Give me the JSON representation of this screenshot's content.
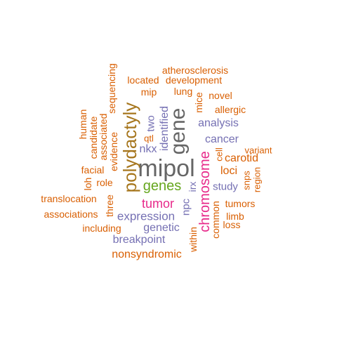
{
  "colors": {
    "orange": "#d95f02",
    "purple": "#7570b3",
    "gray": "#666666",
    "brown": "#a6761d",
    "magenta": "#e7298a",
    "green": "#66a61e"
  },
  "words": [
    {
      "text": "mipol",
      "color": "gray",
      "vertical": false
    },
    {
      "text": "gene",
      "color": "gray",
      "vertical": true
    },
    {
      "text": "polydactyly",
      "color": "brown",
      "vertical": true
    },
    {
      "text": "chromosome",
      "color": "magenta",
      "vertical": true
    },
    {
      "text": "genes",
      "color": "green",
      "vertical": false
    },
    {
      "text": "tumor",
      "color": "magenta",
      "vertical": false
    },
    {
      "text": "expression",
      "color": "purple",
      "vertical": false
    },
    {
      "text": "genetic",
      "color": "purple",
      "vertical": false
    },
    {
      "text": "breakpoint",
      "color": "purple",
      "vertical": false
    },
    {
      "text": "analysis",
      "color": "purple",
      "vertical": false
    },
    {
      "text": "cancer",
      "color": "purple",
      "vertical": false
    },
    {
      "text": "study",
      "color": "purple",
      "vertical": false
    },
    {
      "text": "identified",
      "color": "purple",
      "vertical": true
    },
    {
      "text": "nkx",
      "color": "purple",
      "vertical": false
    },
    {
      "text": "two",
      "color": "purple",
      "vertical": true
    },
    {
      "text": "npc",
      "color": "purple",
      "vertical": true
    },
    {
      "text": "irx",
      "color": "purple",
      "vertical": true
    },
    {
      "text": "nonsyndromic",
      "color": "orange",
      "vertical": false
    },
    {
      "text": "atherosclerosis",
      "color": "orange",
      "vertical": false
    },
    {
      "text": "located",
      "color": "orange",
      "vertical": false
    },
    {
      "text": "development",
      "color": "orange",
      "vertical": false
    },
    {
      "text": "mip",
      "color": "orange",
      "vertical": false
    },
    {
      "text": "lung",
      "color": "orange",
      "vertical": false
    },
    {
      "text": "novel",
      "color": "orange",
      "vertical": false
    },
    {
      "text": "mice",
      "color": "orange",
      "vertical": true
    },
    {
      "text": "allergic",
      "color": "orange",
      "vertical": false
    },
    {
      "text": "sequencing",
      "color": "orange",
      "vertical": true
    },
    {
      "text": "evidence",
      "color": "orange",
      "vertical": true
    },
    {
      "text": "associated",
      "color": "orange",
      "vertical": true
    },
    {
      "text": "candidate",
      "color": "orange",
      "vertical": true
    },
    {
      "text": "human",
      "color": "orange",
      "vertical": true
    },
    {
      "text": "qtl",
      "color": "orange",
      "vertical": false
    },
    {
      "text": "facial",
      "color": "orange",
      "vertical": false
    },
    {
      "text": "loh",
      "color": "orange",
      "vertical": true
    },
    {
      "text": "role",
      "color": "orange",
      "vertical": false
    },
    {
      "text": "translocation",
      "color": "orange",
      "vertical": false
    },
    {
      "text": "three",
      "color": "orange",
      "vertical": true
    },
    {
      "text": "associations",
      "color": "orange",
      "vertical": false
    },
    {
      "text": "including",
      "color": "orange",
      "vertical": false
    },
    {
      "text": "within",
      "color": "orange",
      "vertical": true
    },
    {
      "text": "common",
      "color": "orange",
      "vertical": true
    },
    {
      "text": "tumors",
      "color": "orange",
      "vertical": false
    },
    {
      "text": "limb",
      "color": "orange",
      "vertical": false
    },
    {
      "text": "loss",
      "color": "orange",
      "vertical": false
    },
    {
      "text": "cell",
      "color": "orange",
      "vertical": true
    },
    {
      "text": "carotid",
      "color": "orange",
      "vertical": false
    },
    {
      "text": "loci",
      "color": "orange",
      "vertical": false
    },
    {
      "text": "variant",
      "color": "orange",
      "vertical": false
    },
    {
      "text": "snps",
      "color": "orange",
      "vertical": true
    },
    {
      "text": "region",
      "color": "orange",
      "vertical": true
    }
  ]
}
